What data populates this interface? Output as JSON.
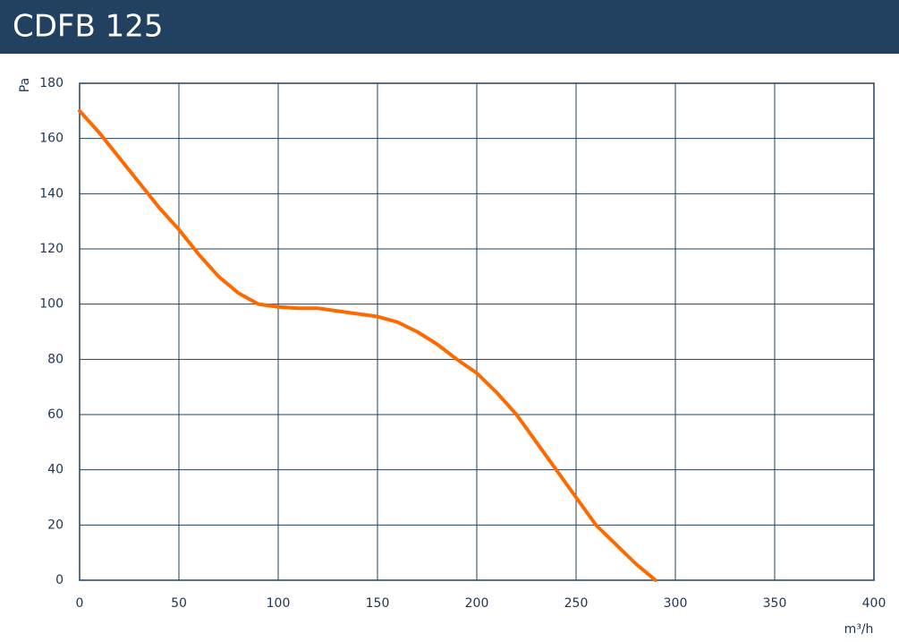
{
  "chart_data": {
    "type": "line",
    "title": "CDFB 125",
    "x_label": "m³/h",
    "y_label": "Pa",
    "x": [
      0,
      10,
      20,
      30,
      40,
      50,
      60,
      70,
      80,
      90,
      100,
      110,
      120,
      130,
      140,
      150,
      160,
      170,
      180,
      190,
      200,
      210,
      220,
      230,
      240,
      250,
      260,
      270,
      280,
      290
    ],
    "values": [
      170,
      162,
      153,
      144,
      135,
      127,
      118,
      110,
      104,
      100,
      99,
      98.5,
      98.5,
      97.5,
      96.5,
      95.5,
      93.5,
      90,
      85.5,
      80,
      75,
      68,
      60,
      50,
      40,
      30,
      20,
      13,
      6,
      0
    ],
    "color": "#ff6a00",
    "xlim": [
      0,
      400
    ],
    "xticks": [
      0,
      50,
      100,
      150,
      200,
      250,
      300,
      350,
      400
    ],
    "ylim": [
      0,
      180
    ],
    "yticks": [
      0,
      20,
      40,
      60,
      80,
      100,
      120,
      140,
      160,
      180
    ],
    "grid": true
  }
}
